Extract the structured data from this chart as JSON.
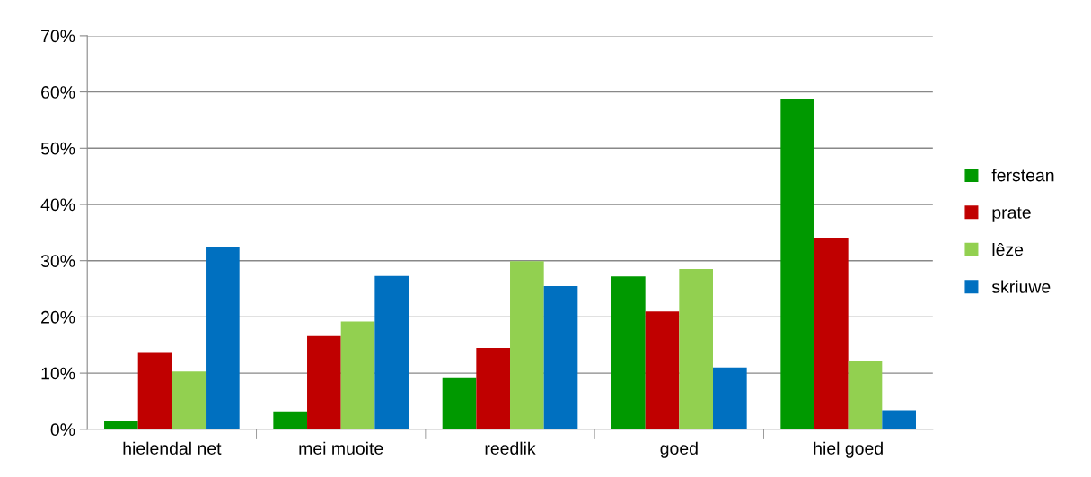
{
  "chart_data": {
    "type": "bar",
    "categories": [
      "hielendal net",
      "mei muoite",
      "reedlik",
      "goed",
      "hiel goed"
    ],
    "series": [
      {
        "name": "ferstean",
        "color": "#009900",
        "values": [
          1.5,
          3.2,
          9.1,
          27.2,
          58.8
        ]
      },
      {
        "name": "prate",
        "color": "#c00000",
        "values": [
          13.6,
          16.6,
          14.5,
          21.0,
          34.1
        ]
      },
      {
        "name": "lêze",
        "color": "#92d050",
        "values": [
          10.3,
          19.2,
          29.9,
          28.5,
          12.1
        ]
      },
      {
        "name": "skriuwe",
        "color": "#0070c0",
        "values": [
          32.5,
          27.3,
          25.5,
          11.0,
          3.4
        ]
      }
    ],
    "ylim": [
      0,
      70
    ],
    "yticks": [
      {
        "value": 0,
        "label": "0%"
      },
      {
        "value": 10,
        "label": "10%"
      },
      {
        "value": 20,
        "label": "20%"
      },
      {
        "value": 30,
        "label": "30%"
      },
      {
        "value": 40,
        "label": "40%"
      },
      {
        "value": 50,
        "label": "50%"
      },
      {
        "value": 60,
        "label": "60%"
      },
      {
        "value": 70,
        "label": "70%"
      }
    ],
    "grid": "y",
    "legend": "right"
  }
}
